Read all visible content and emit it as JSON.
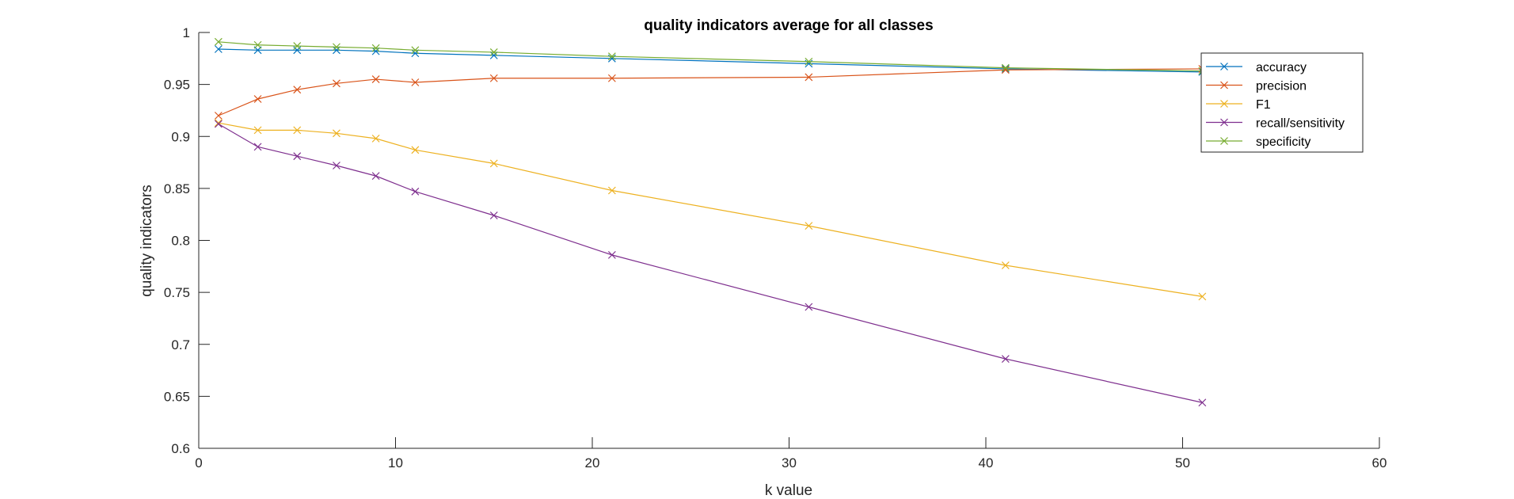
{
  "chart_data": {
    "type": "line",
    "title": "quality indicators average for all classes",
    "xlabel": "k value",
    "ylabel": "quality indicators",
    "xlim": [
      0,
      60
    ],
    "ylim": [
      0.6,
      1
    ],
    "xticks": [
      0,
      10,
      20,
      30,
      40,
      50,
      60
    ],
    "yticks": [
      0.6,
      0.65,
      0.7,
      0.75,
      0.8,
      0.85,
      0.9,
      0.95,
      1
    ],
    "xtick_labels": [
      "0",
      "10",
      "20",
      "30",
      "40",
      "50",
      "60"
    ],
    "ytick_labels": [
      "0.6",
      "0.65",
      "0.7",
      "0.75",
      "0.8",
      "0.85",
      "0.9",
      "0.95",
      "1"
    ],
    "marker": "x",
    "grid": false,
    "legend_position": "top-right",
    "x": [
      1,
      3,
      5,
      7,
      9,
      11,
      15,
      21,
      31,
      41,
      51
    ],
    "series": [
      {
        "name": "accuracy",
        "color": "#0072BD",
        "values": [
          0.984,
          0.983,
          0.983,
          0.983,
          0.982,
          0.98,
          0.978,
          0.975,
          0.97,
          0.965,
          0.962
        ]
      },
      {
        "name": "precision",
        "color": "#D95319",
        "values": [
          0.92,
          0.936,
          0.945,
          0.951,
          0.955,
          0.952,
          0.956,
          0.956,
          0.957,
          0.964,
          0.965
        ]
      },
      {
        "name": "F1",
        "color": "#EDB120",
        "values": [
          0.913,
          0.906,
          0.906,
          0.903,
          0.898,
          0.887,
          0.874,
          0.848,
          0.814,
          0.776,
          0.746
        ]
      },
      {
        "name": "recall/sensitivity",
        "color": "#7E2F8E",
        "values": [
          0.912,
          0.89,
          0.881,
          0.872,
          0.862,
          0.847,
          0.824,
          0.786,
          0.736,
          0.686,
          0.644
        ]
      },
      {
        "name": "specificity",
        "color": "#77AC30",
        "values": [
          0.991,
          0.988,
          0.987,
          0.986,
          0.985,
          0.983,
          0.981,
          0.977,
          0.972,
          0.966,
          0.963
        ]
      }
    ]
  }
}
